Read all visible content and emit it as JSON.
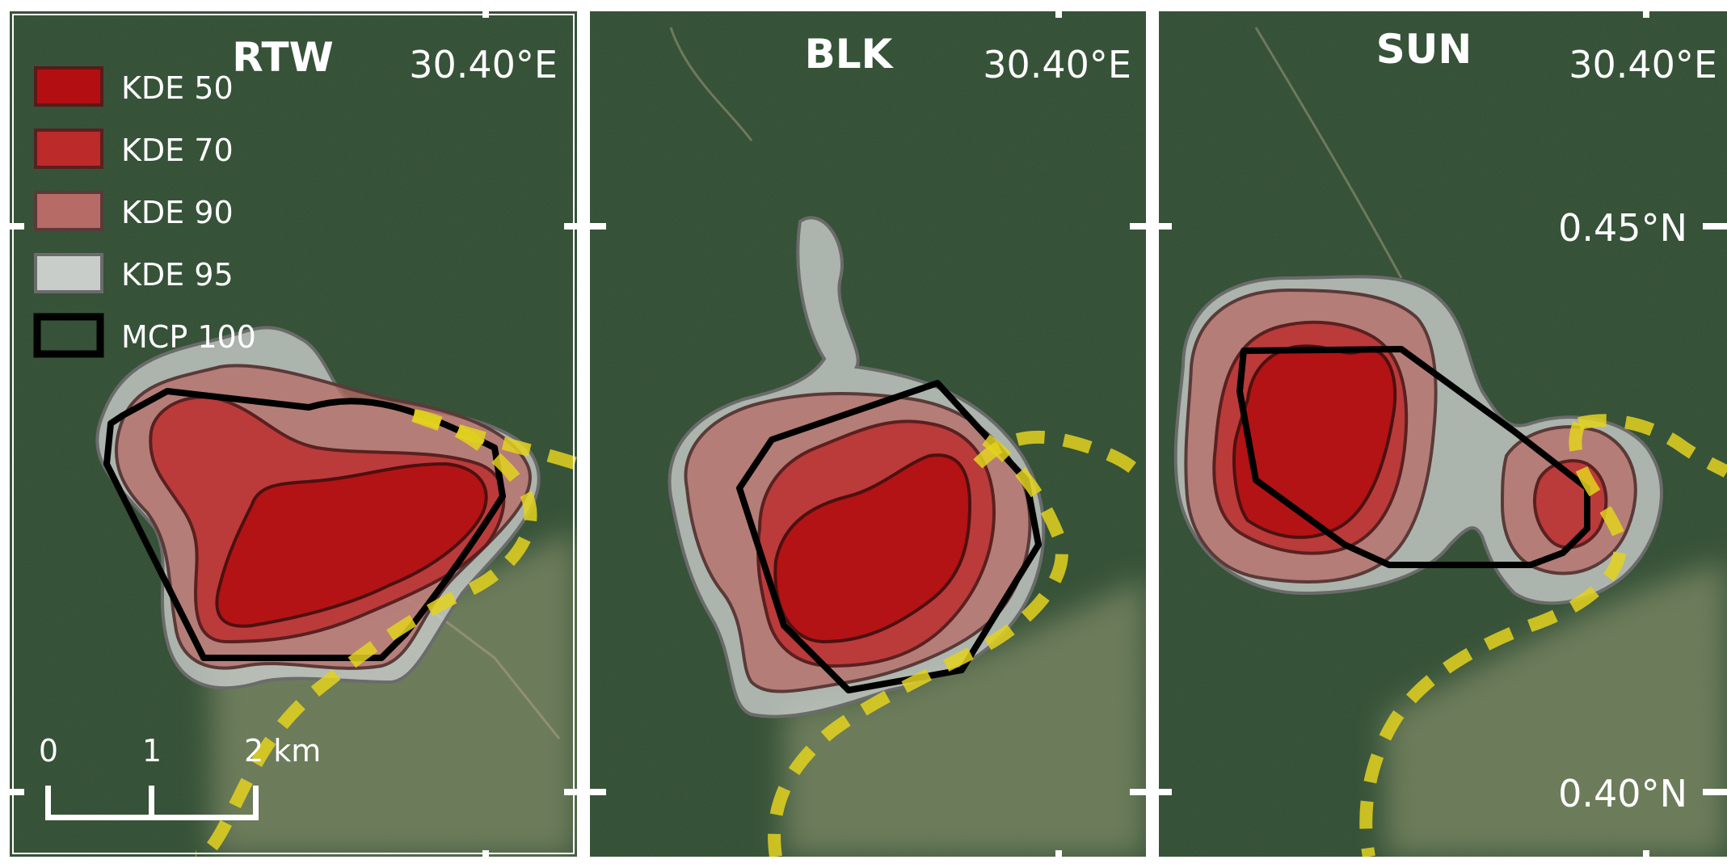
{
  "panels": [
    {
      "title": "RTW",
      "longitude_label": "30.40°E"
    },
    {
      "title": "BLK",
      "longitude_label": "30.40°E"
    },
    {
      "title": "SUN",
      "longitude_label": "30.40°E",
      "latitude_labels": [
        "0.45°N",
        "0.40°N"
      ]
    }
  ],
  "legend": {
    "items": [
      {
        "label": "KDE 50",
        "color": "#b30f12"
      },
      {
        "label": "KDE 70",
        "color": "#bc2b2a"
      },
      {
        "label": "KDE 90",
        "color": "#b76b66"
      },
      {
        "label": "KDE 95",
        "color": "#c9cdca"
      },
      {
        "label": "MCP 100",
        "color": "#000000"
      }
    ]
  },
  "scale_bar": {
    "labels": [
      "0",
      "1",
      "2 km"
    ]
  },
  "colors": {
    "forest": "#2f4b31",
    "farmland": "#7f8a66",
    "park_boundary": "#e3d21e",
    "frame": "#ffffff"
  }
}
